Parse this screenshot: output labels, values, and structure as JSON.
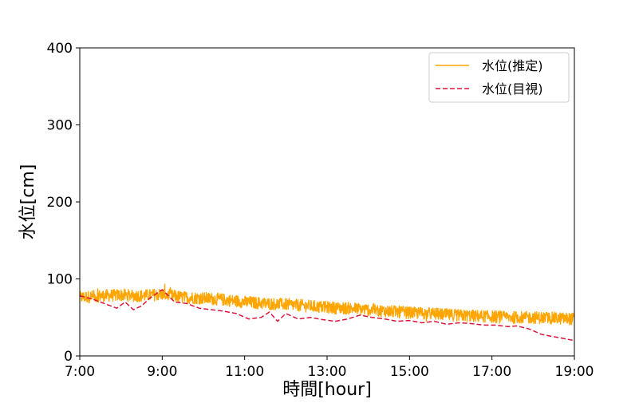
{
  "chart_data": {
    "type": "line",
    "title": "",
    "xlabel": "時間[hour]",
    "ylabel": "水位[cm]",
    "xlim": [
      7,
      19
    ],
    "ylim": [
      0,
      400
    ],
    "xticks": [
      7,
      9,
      11,
      13,
      15,
      17,
      19
    ],
    "xtick_labels": [
      "7:00",
      "9:00",
      "11:00",
      "13:00",
      "15:00",
      "17:00",
      "19:00"
    ],
    "yticks": [
      0,
      100,
      200,
      300,
      400
    ],
    "ytick_labels": [
      "0",
      "100",
      "200",
      "300",
      "400"
    ],
    "grid": false,
    "legend_position": "upper-right",
    "series": [
      {
        "name": "水位(推定)",
        "color": "#ffa500",
        "style": "solid",
        "noise_amplitude": 8,
        "x": [
          7.0,
          7.5,
          8.0,
          8.5,
          9.0,
          9.5,
          10.0,
          10.5,
          11.0,
          11.5,
          12.0,
          12.5,
          13.0,
          13.5,
          14.0,
          14.5,
          15.0,
          15.5,
          16.0,
          16.5,
          17.0,
          17.5,
          18.0,
          18.5,
          19.0
        ],
        "y": [
          76,
          78,
          79,
          78,
          80,
          76,
          75,
          73,
          70,
          68,
          67,
          65,
          63,
          62,
          60,
          58,
          56,
          55,
          53,
          52,
          51,
          50,
          50,
          49,
          48
        ]
      },
      {
        "name": "水位(目視)",
        "color": "#dc143c",
        "style": "dashed",
        "x": [
          7.0,
          7.3,
          7.6,
          7.9,
          8.1,
          8.3,
          8.5,
          8.7,
          9.0,
          9.3,
          9.6,
          9.9,
          10.2,
          10.5,
          10.8,
          11.1,
          11.4,
          11.6,
          11.8,
          12.0,
          12.3,
          12.6,
          12.9,
          13.2,
          13.5,
          13.8,
          14.1,
          14.4,
          14.7,
          15.0,
          15.3,
          15.6,
          15.9,
          16.2,
          16.5,
          16.8,
          17.1,
          17.4,
          17.6,
          17.9,
          18.2,
          18.5,
          18.8,
          19.0
        ],
        "y": [
          78,
          74,
          68,
          62,
          70,
          60,
          65,
          75,
          86,
          70,
          68,
          62,
          60,
          58,
          55,
          48,
          50,
          57,
          45,
          55,
          48,
          50,
          47,
          45,
          48,
          53,
          50,
          48,
          45,
          46,
          43,
          45,
          41,
          43,
          42,
          40,
          40,
          38,
          39,
          35,
          28,
          25,
          22,
          20
        ]
      }
    ]
  }
}
